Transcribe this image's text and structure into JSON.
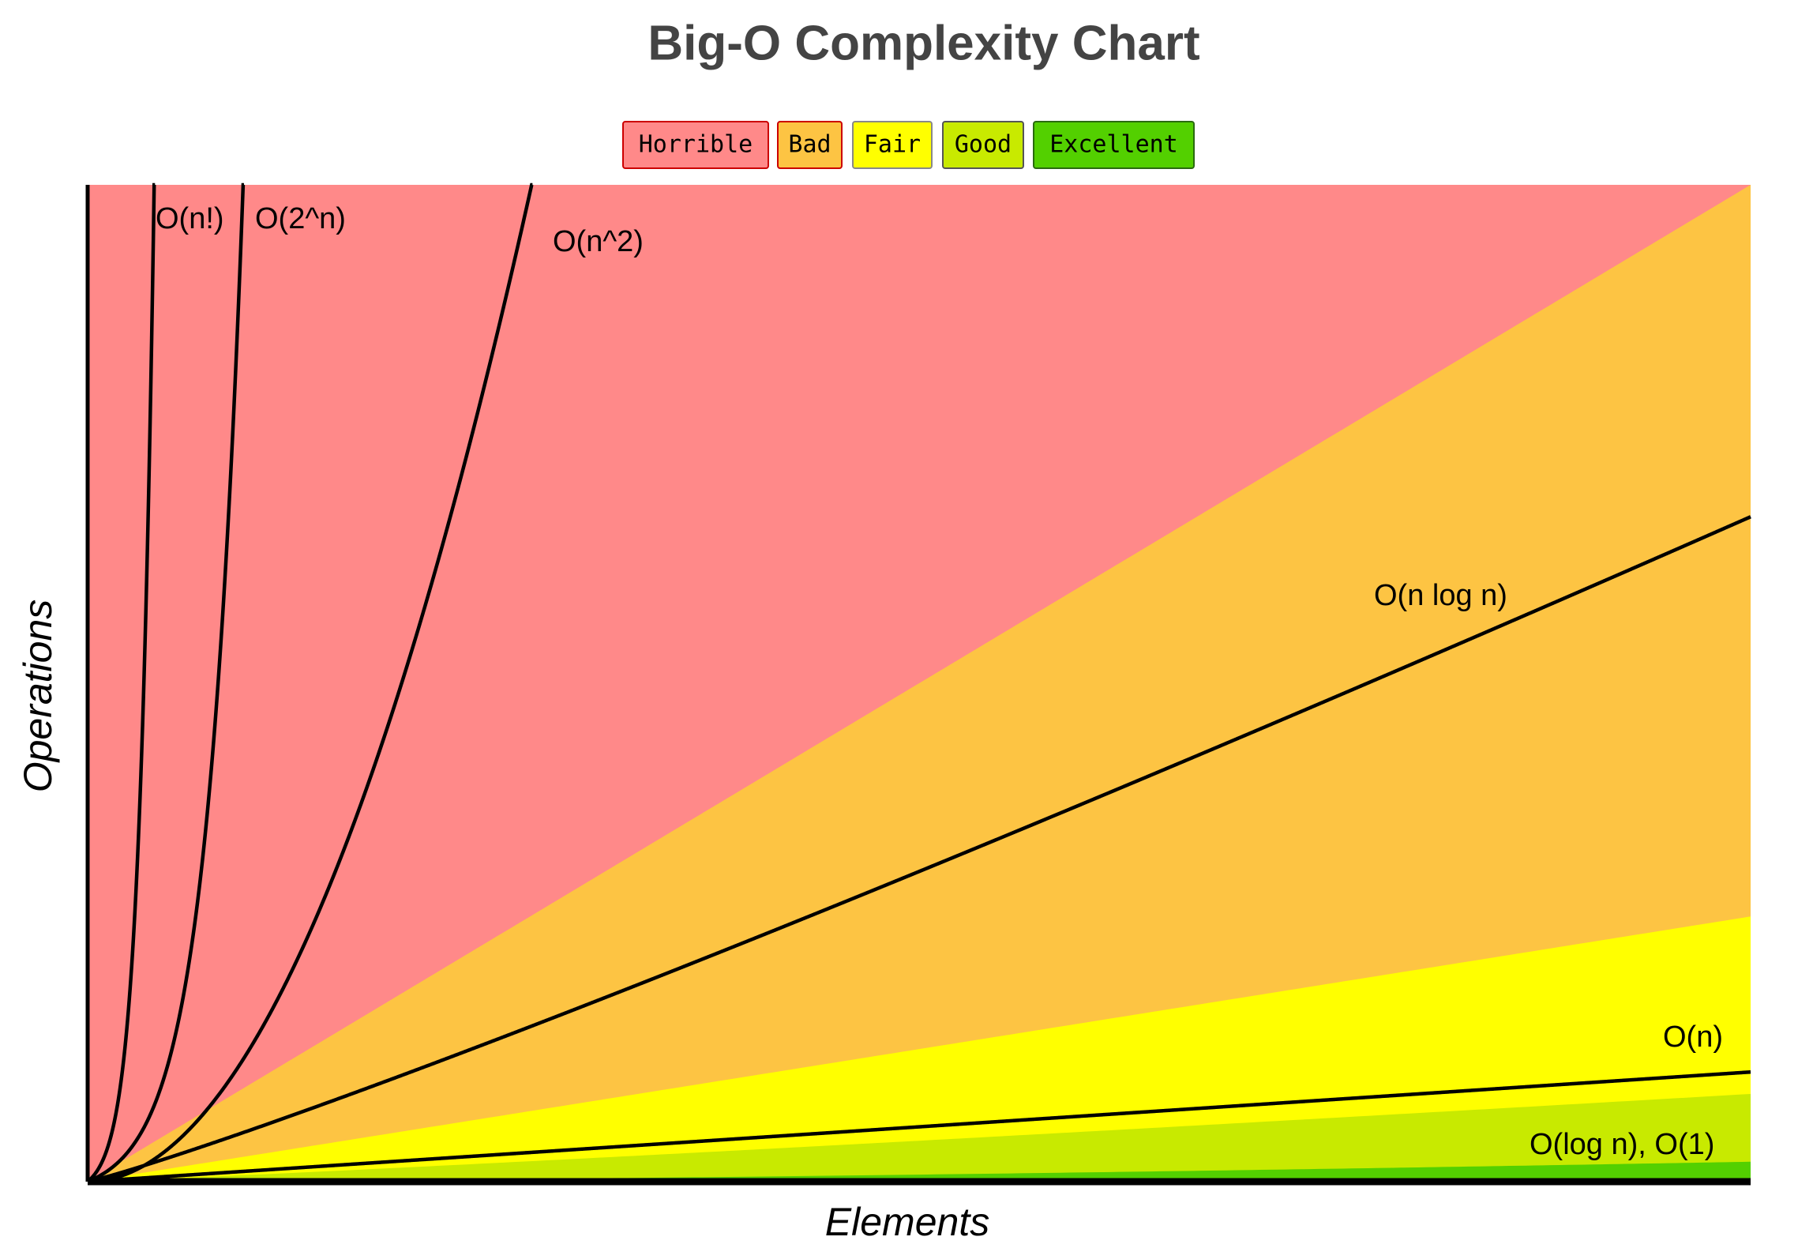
{
  "title": "Big-O Complexity Chart",
  "legend": [
    "Horrible",
    "Bad",
    "Fair",
    "Good",
    "Excellent"
  ],
  "axes": {
    "x_label": "Elements",
    "y_label": "Operations"
  },
  "curves": [
    "O(n!)",
    "O(2^n)",
    "O(n^2)",
    "O(n log n)",
    "O(n)",
    "O(log n), O(1)"
  ]
}
